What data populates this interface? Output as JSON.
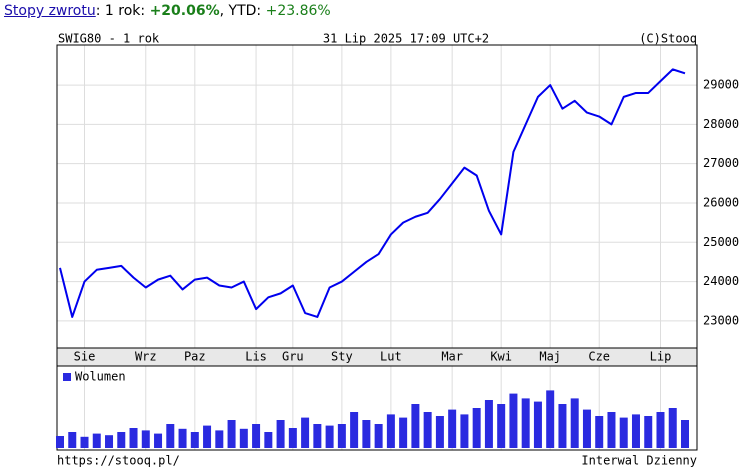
{
  "header": {
    "link": "Stopy zwrotu",
    "period": ": 1 rok:",
    "return_1y": "+20.06%",
    "ytd": ", YTD:",
    "return_ytd": "+23.86%"
  },
  "footer": {
    "url": "https://stooq.pl/",
    "interval": "Interwal Dzienny"
  },
  "chart_data": [
    {
      "type": "line",
      "title": "SWIG80 - 1 rok",
      "subtitle": "31 Lip 2025 17:09 UTC+2",
      "source": "(C)Stooq",
      "categories": [
        null,
        null,
        "Sie",
        null,
        null,
        null,
        null,
        "Wrz",
        null,
        null,
        null,
        "Paz",
        null,
        null,
        null,
        null,
        "Lis",
        null,
        null,
        "Gru",
        null,
        null,
        null,
        "Sty",
        null,
        null,
        null,
        "Lut",
        null,
        null,
        null,
        null,
        "Mar",
        null,
        null,
        null,
        "Kwi",
        null,
        null,
        null,
        "Maj",
        null,
        null,
        null,
        "Cze",
        null,
        null,
        null,
        null,
        "Lip",
        null,
        null
      ],
      "series": [
        {
          "name": "SWIG80",
          "color": "#0000ee",
          "values": [
            24350,
            23100,
            24000,
            24300,
            24350,
            24400,
            24100,
            23850,
            24050,
            24150,
            23800,
            24050,
            24100,
            23900,
            23850,
            24000,
            23300,
            23600,
            23700,
            23900,
            23200,
            23100,
            23850,
            24000,
            24250,
            24500,
            24700,
            25200,
            25500,
            25650,
            25750,
            26100,
            26500,
            26900,
            26700,
            25800,
            25200,
            27300,
            28000,
            28700,
            29000,
            28400,
            28600,
            28300,
            28200,
            28000,
            28700,
            28800,
            28800,
            29100,
            29400,
            29300
          ]
        }
      ],
      "ylim": [
        22310,
        30020
      ],
      "yticks": [
        23000,
        24000,
        25000,
        26000,
        27000,
        28000,
        29000
      ],
      "grid": true
    },
    {
      "type": "bar",
      "series": [
        {
          "name": "Wolumen",
          "color": "#2a2ae0",
          "values": [
            15,
            20,
            14,
            18,
            16,
            20,
            25,
            22,
            18,
            30,
            24,
            20,
            28,
            22,
            35,
            24,
            30,
            20,
            35,
            25,
            38,
            30,
            28,
            30,
            45,
            35,
            30,
            42,
            38,
            55,
            45,
            40,
            48,
            42,
            50,
            60,
            55,
            68,
            62,
            58,
            72,
            55,
            62,
            48,
            40,
            45,
            38,
            42,
            40,
            45,
            50,
            35
          ]
        }
      ],
      "ylim": [
        0,
        100
      ]
    }
  ]
}
